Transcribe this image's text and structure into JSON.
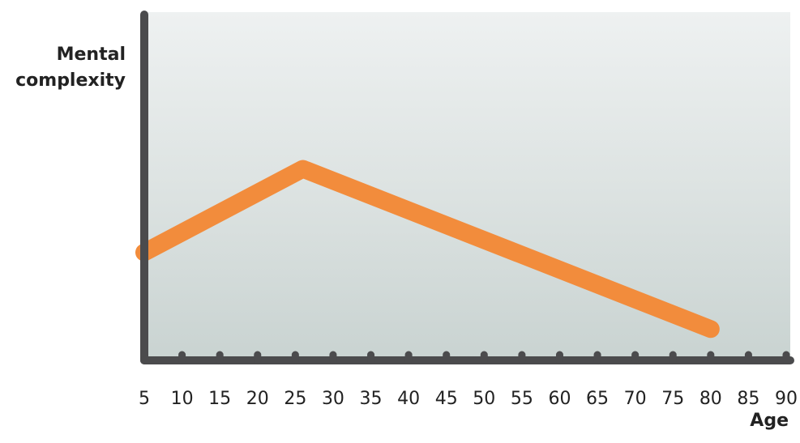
{
  "chart_data": {
    "type": "line",
    "y_label": "Mental complexity",
    "x_label": "Age",
    "x": [
      5,
      26,
      80
    ],
    "values": [
      31,
      55,
      9
    ],
    "color": "#f28c3c",
    "xlim": [
      5,
      90
    ],
    "xticks": [
      5,
      10,
      15,
      20,
      25,
      30,
      35,
      40,
      45,
      50,
      55,
      60,
      65,
      70,
      75,
      80,
      85,
      90
    ],
    "ylim": [
      0,
      100
    ]
  }
}
